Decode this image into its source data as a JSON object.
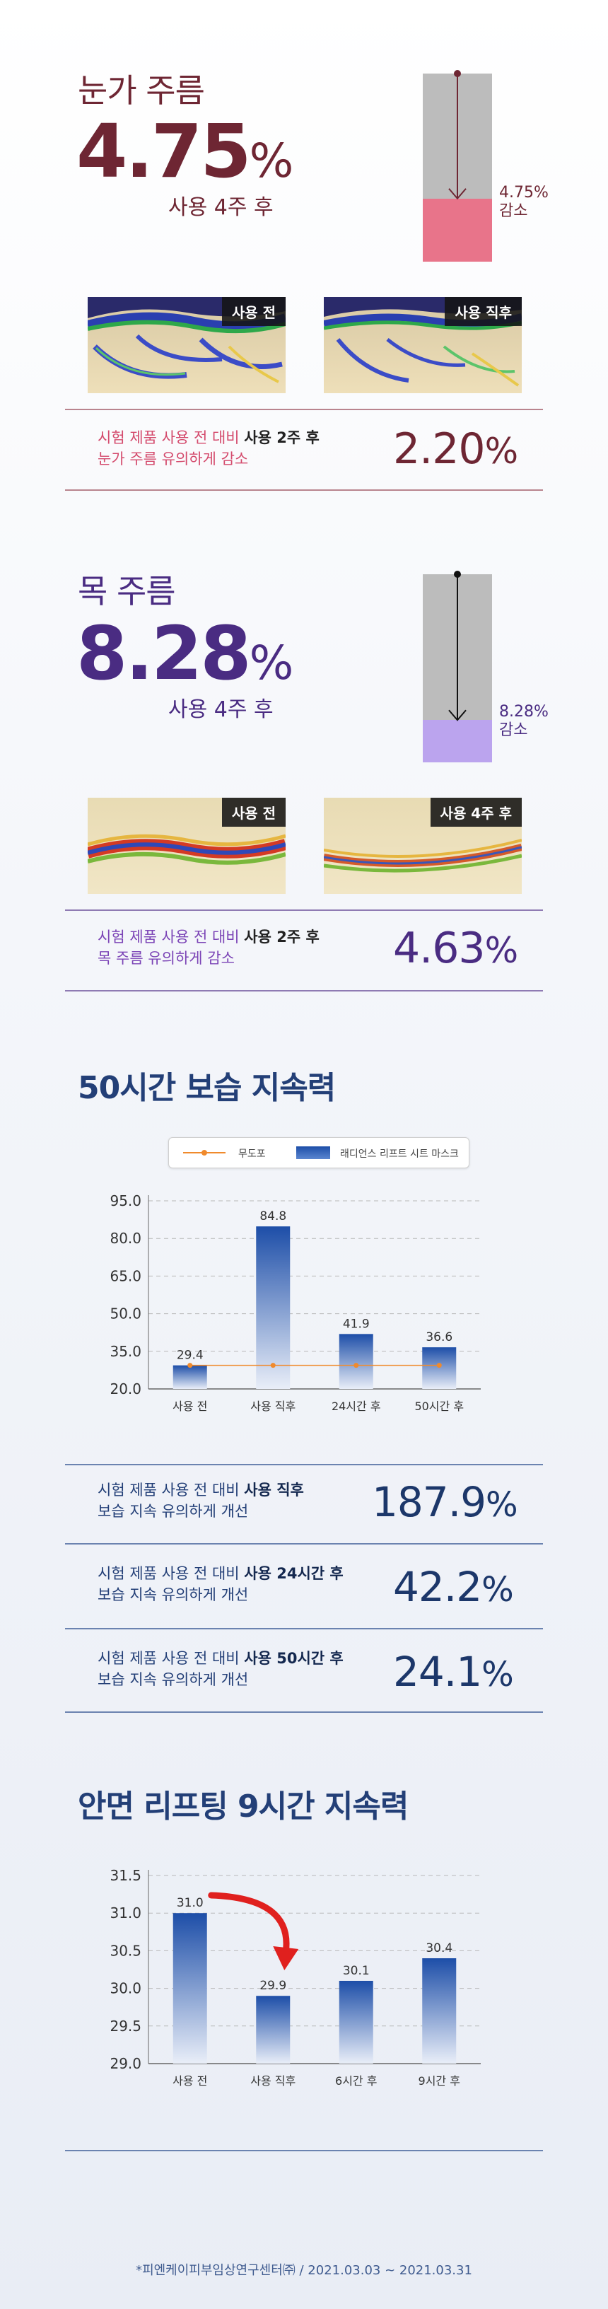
{
  "eye": {
    "title": "눈가 주름",
    "value": "4.75",
    "pct": "%",
    "sub": "사용 4주 후",
    "gauge_label_1": "4.75%",
    "gauge_label_2": "감소",
    "gauge_reduction": 0.3356,
    "photo_before_tag": "사용 전",
    "photo_after_tag": "사용 직후",
    "result_pre": "시험 제품 사용 전 대비 ",
    "result_bold": "사용 2주 후",
    "result_line2": "눈가 주름 유의하게 감소",
    "result_value": "2.20",
    "result_pct": "%",
    "color": "#6e2633",
    "accent": "#d44a6c",
    "fill": "#e8748a"
  },
  "neck": {
    "title": "목 주름",
    "value": "8.28",
    "pct": "%",
    "sub": "사용 4주 후",
    "gauge_label_1": "8.28%",
    "gauge_label_2": "감소",
    "gauge_reduction": 0.2247,
    "photo_before_tag": "사용 전",
    "photo_after_tag": "사용 4주 후",
    "result_pre": "시험 제품 사용 전 대비 ",
    "result_bold": "사용 2주 후",
    "result_line2": "목 주름 유의하게 감소",
    "result_value": "4.63",
    "result_pct": "%",
    "color": "#4a2c82",
    "accent": "#7b44b6",
    "fill": "#bba4ee"
  },
  "moisture": {
    "title": "50시간 보습 지속력",
    "legend_line": "무도포",
    "legend_bar": "래디언스 리프트 시트 마스크",
    "comparisons": [
      {
        "pre": "시험 제품 사용 전 대비 ",
        "bold": "사용 직후",
        "line2": "보습 지속 유의하게 개선",
        "value": "187.9",
        "pct": "%"
      },
      {
        "pre": "시험 제품 사용 전 대비 ",
        "bold": "사용 24시간 후",
        "line2": "보습 지속 유의하게 개선",
        "value": "42.2",
        "pct": "%"
      },
      {
        "pre": "시험 제품 사용 전 대비 ",
        "bold": "사용 50시간 후",
        "line2": "보습 지속 유의하게 개선",
        "value": "24.1",
        "pct": "%"
      }
    ]
  },
  "lifting": {
    "title": "안면 리프팅 9시간 지속력"
  },
  "chart_data": [
    {
      "type": "bar",
      "categories": [
        "사용 전",
        "사용 직후",
        "24시간 후",
        "50시간 후"
      ],
      "series": [
        {
          "name": "래디언스 리프트 시트 마스크",
          "values": [
            29.4,
            84.8,
            41.9,
            36.6
          ],
          "type": "bar"
        },
        {
          "name": "무도포",
          "values": [
            29.4,
            29.4,
            29.4,
            29.4
          ],
          "type": "line"
        }
      ],
      "ylim": [
        20.0,
        95.0
      ],
      "yticks": [
        "20.0",
        "35.0",
        "50.0",
        "65.0",
        "80.0",
        "95.0"
      ],
      "grid": true,
      "legend": "top"
    },
    {
      "type": "bar",
      "categories": [
        "사용 전",
        "사용 직후",
        "6시간 후",
        "9시간 후"
      ],
      "values": [
        31.0,
        29.9,
        30.1,
        30.4
      ],
      "ylim": [
        29.0,
        31.5
      ],
      "yticks": [
        "29.0",
        "29.5",
        "30.0",
        "30.5",
        "31.0",
        "31.5"
      ],
      "grid": true
    }
  ],
  "footnote": "*피엔케이피부임상연구센터㈜ / 2021.03.03 ~ 2021.03.31",
  "colors": {
    "bar_top": "#1d4ea8",
    "bar_bottom": "#e9eef8",
    "line_orange": "#f08a2c",
    "arrow_red": "#e0201e",
    "section_blue": "#233f77"
  }
}
